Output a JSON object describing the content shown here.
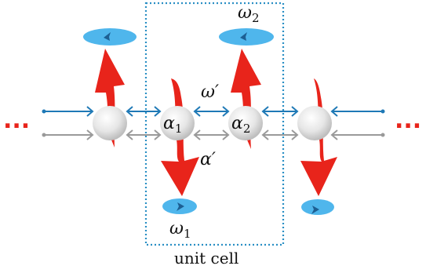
{
  "labels": {
    "alpha1": {
      "base": "α",
      "sub": "1"
    },
    "alpha2": {
      "base": "α",
      "sub": "2"
    },
    "omega_prime": "ω′",
    "alpha_prime": "α′",
    "omega1": {
      "base": "ω",
      "sub": "1"
    },
    "omega2": {
      "base": "ω",
      "sub": "2"
    },
    "unit_cell": "unit cell",
    "ellipsis_left": "...",
    "ellipsis_right": "..."
  },
  "colors": {
    "spin_arrow": "#e8241b",
    "precession_disc": "#4fb6ec",
    "precession_arrow": "#1d5f93",
    "coupling_omega": "#1f79b6",
    "coupling_alpha": "#9a9a9a",
    "unit_cell_border": "#2a8fc4",
    "ellipsis": "#e8241b",
    "site": "#dcdcdc"
  },
  "icons": {
    "site": "sphere",
    "spin": "arrow",
    "precession": "disc-with-arrow"
  }
}
